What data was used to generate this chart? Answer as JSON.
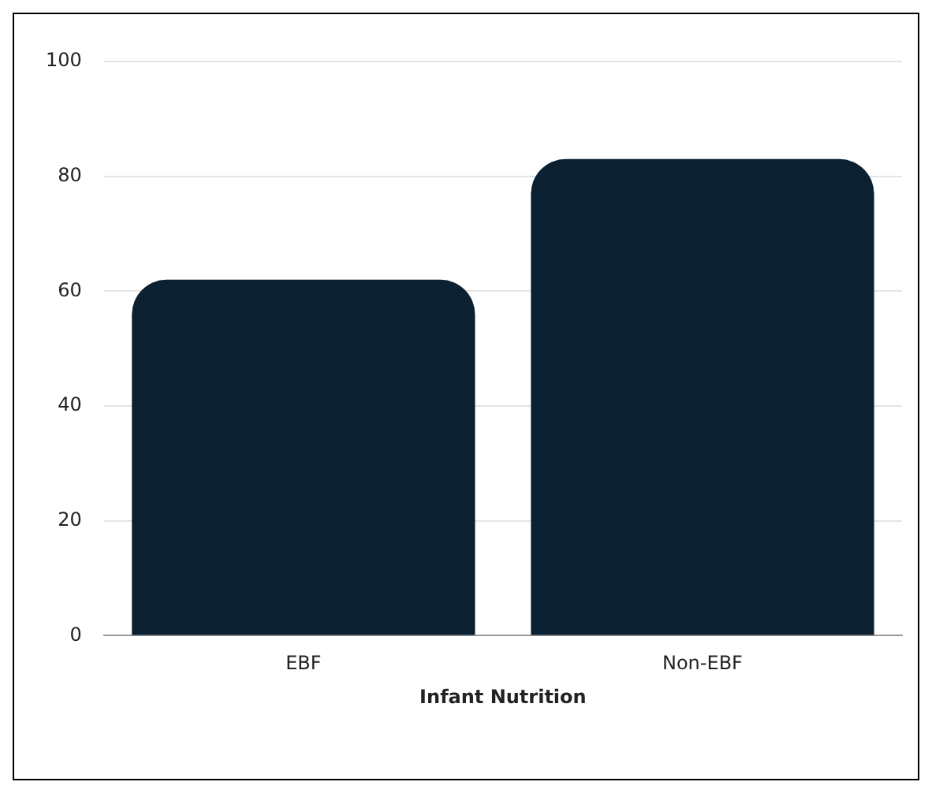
{
  "chart_data": {
    "type": "bar",
    "xlabel": "Infant Nutrition",
    "categories": [
      "EBF",
      "Non-EBF"
    ],
    "values": [
      62,
      83
    ],
    "color": "#0b2030",
    "ylim": [
      0,
      100
    ],
    "yticks": [
      0,
      20,
      40,
      60,
      80,
      100
    ],
    "grid": "y",
    "legend": false
  }
}
